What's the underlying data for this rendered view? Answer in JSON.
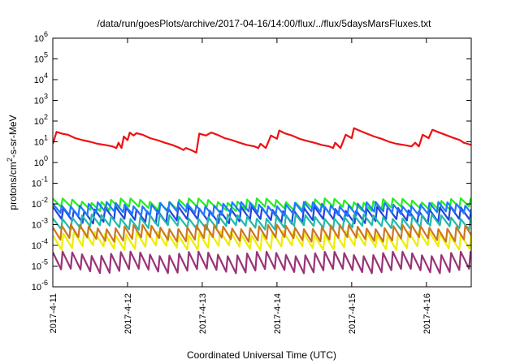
{
  "chart_data": {
    "type": "line",
    "title": "/data/run/goesPlots/archive/2017-04-16/14:00/flux/../flux/5daysMarsFluxes.txt",
    "xlabel": "Coordinated Universal Time (UTC)",
    "ylabel_parts": [
      "protons/cm",
      "2",
      "-s-sr-MeV"
    ],
    "y_scale": "log",
    "ylim_exp": [
      -6,
      6
    ],
    "y_tick_labels": [
      {
        "exp": -6,
        "base": "10",
        "sup": "-6"
      },
      {
        "exp": -5,
        "base": "10",
        "sup": "-5"
      },
      {
        "exp": -4,
        "base": "10",
        "sup": "-4"
      },
      {
        "exp": -3,
        "base": "10",
        "sup": "-3"
      },
      {
        "exp": -2,
        "base": "10",
        "sup": "-2"
      },
      {
        "exp": -1,
        "base": "10",
        "sup": "-1"
      },
      {
        "exp": 0,
        "base": "10",
        "sup": "0"
      },
      {
        "exp": 1,
        "base": "10",
        "sup": "1"
      },
      {
        "exp": 2,
        "base": "10",
        "sup": "2"
      },
      {
        "exp": 3,
        "base": "10",
        "sup": "3"
      },
      {
        "exp": 4,
        "base": "10",
        "sup": "4"
      },
      {
        "exp": 5,
        "base": "10",
        "sup": "5"
      },
      {
        "exp": 6,
        "base": "10",
        "sup": "6"
      }
    ],
    "xlim_days": [
      0,
      5.6
    ],
    "x_tick_labels": [
      "2017-4-11",
      "2017-4-12",
      "2017-4-13",
      "2017-4-14",
      "2017-4-15",
      "2017-4-16"
    ],
    "x_tick_days": [
      0,
      1,
      2,
      3,
      4,
      5
    ],
    "grid": false,
    "legend": "none",
    "series_style": {
      "width": 2.2
    },
    "series": [
      {
        "color": "#ee1111",
        "points": [
          [
            0.0,
            8
          ],
          [
            0.05,
            30
          ],
          [
            0.12,
            25
          ],
          [
            0.2,
            22
          ],
          [
            0.3,
            15
          ],
          [
            0.4,
            12
          ],
          [
            0.5,
            10
          ],
          [
            0.6,
            8
          ],
          [
            0.7,
            7
          ],
          [
            0.8,
            6
          ],
          [
            0.85,
            5
          ],
          [
            0.88,
            9
          ],
          [
            0.92,
            5
          ],
          [
            0.95,
            18
          ],
          [
            1.0,
            12
          ],
          [
            1.03,
            28
          ],
          [
            1.08,
            20
          ],
          [
            1.12,
            26
          ],
          [
            1.2,
            22
          ],
          [
            1.3,
            15
          ],
          [
            1.4,
            12
          ],
          [
            1.5,
            9
          ],
          [
            1.6,
            7
          ],
          [
            1.7,
            5
          ],
          [
            1.75,
            4
          ],
          [
            1.78,
            5
          ],
          [
            1.85,
            4
          ],
          [
            1.92,
            3
          ],
          [
            1.96,
            25
          ],
          [
            2.05,
            20
          ],
          [
            2.12,
            28
          ],
          [
            2.2,
            22
          ],
          [
            2.3,
            15
          ],
          [
            2.4,
            12
          ],
          [
            2.5,
            9
          ],
          [
            2.6,
            7
          ],
          [
            2.7,
            6
          ],
          [
            2.75,
            5
          ],
          [
            2.78,
            8
          ],
          [
            2.85,
            5
          ],
          [
            2.92,
            20
          ],
          [
            3.0,
            14
          ],
          [
            3.03,
            35
          ],
          [
            3.1,
            26
          ],
          [
            3.2,
            20
          ],
          [
            3.3,
            14
          ],
          [
            3.4,
            11
          ],
          [
            3.5,
            9
          ],
          [
            3.6,
            7
          ],
          [
            3.7,
            6
          ],
          [
            3.75,
            5
          ],
          [
            3.78,
            9
          ],
          [
            3.85,
            5
          ],
          [
            3.92,
            22
          ],
          [
            4.0,
            15
          ],
          [
            4.03,
            45
          ],
          [
            4.1,
            35
          ],
          [
            4.2,
            25
          ],
          [
            4.3,
            18
          ],
          [
            4.4,
            14
          ],
          [
            4.5,
            10
          ],
          [
            4.6,
            8
          ],
          [
            4.7,
            7
          ],
          [
            4.8,
            6
          ],
          [
            4.85,
            9
          ],
          [
            4.9,
            6
          ],
          [
            4.95,
            22
          ],
          [
            5.03,
            15
          ],
          [
            5.08,
            38
          ],
          [
            5.15,
            30
          ],
          [
            5.25,
            22
          ],
          [
            5.35,
            16
          ],
          [
            5.45,
            12
          ],
          [
            5.5,
            9
          ],
          [
            5.55,
            8
          ],
          [
            5.6,
            7
          ]
        ]
      },
      {
        "color": "#22ee22",
        "base": 0.015,
        "ratio": 0.4,
        "points": []
      },
      {
        "color": "#2244dd",
        "base": 0.006,
        "ratio": 0.25,
        "points": []
      },
      {
        "color": "#2277ff",
        "base": 0.01,
        "ratio": 0.35,
        "points": []
      },
      {
        "color": "#22bbaa",
        "base": 0.0025,
        "ratio": 0.3,
        "points": []
      },
      {
        "color": "#eeee00",
        "base": 0.0004,
        "ratio": 0.2,
        "points": []
      },
      {
        "color": "#cc7722",
        "base": 0.0008,
        "ratio": 0.25,
        "points": []
      },
      {
        "color": "#993377",
        "base": 4e-05,
        "ratio": 0.15,
        "points": []
      }
    ]
  }
}
